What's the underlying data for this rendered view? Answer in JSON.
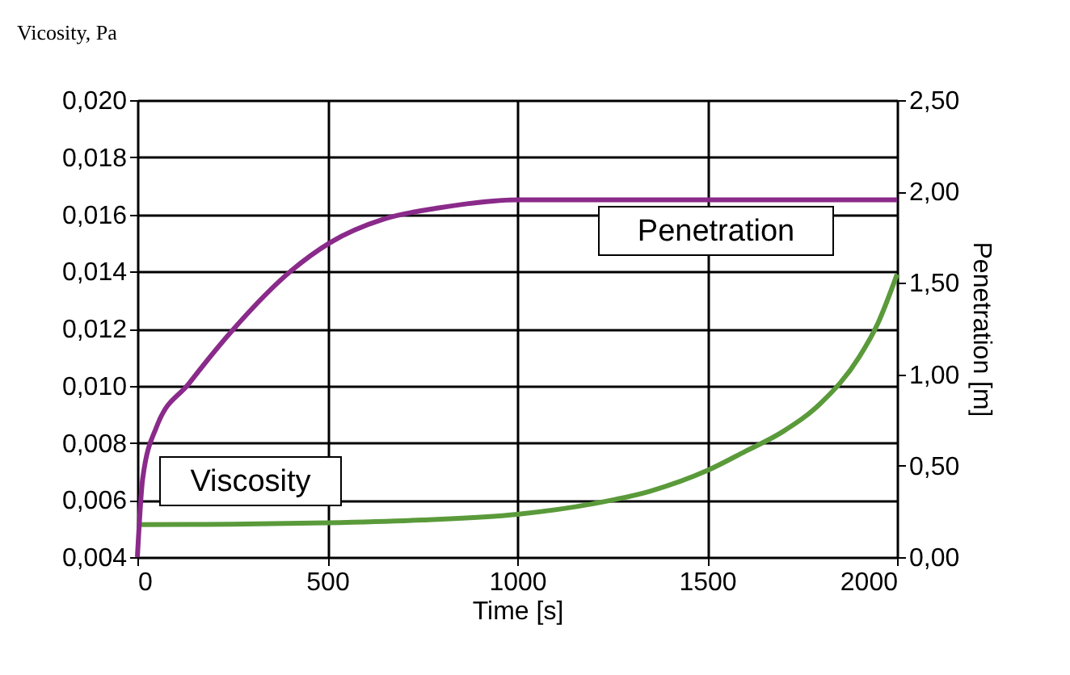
{
  "chart_data": {
    "type": "line",
    "xlabel": "Time [s]",
    "ylabel": "Vicosity, Pa",
    "y2label": "Penetration [m]",
    "xlim": [
      0,
      2000
    ],
    "xticks": [
      0,
      500,
      1000,
      1500,
      2000
    ],
    "ylim": [
      0.004,
      0.02
    ],
    "yticks": [
      {
        "value": 0.004,
        "label": "0,004"
      },
      {
        "value": 0.006,
        "label": "0,006"
      },
      {
        "value": 0.008,
        "label": "0,008"
      },
      {
        "value": 0.01,
        "label": "0,010"
      },
      {
        "value": 0.012,
        "label": "0,012"
      },
      {
        "value": 0.014,
        "label": "0,014"
      },
      {
        "value": 0.016,
        "label": "0,016"
      },
      {
        "value": 0.018,
        "label": "0,018"
      },
      {
        "value": 0.02,
        "label": "0,020"
      }
    ],
    "y2lim": [
      0,
      2.5
    ],
    "y2ticks": [
      {
        "value": 0,
        "label": "0,00"
      },
      {
        "value": 0.5,
        "label": "0,50"
      },
      {
        "value": 1,
        "label": "1,00"
      },
      {
        "value": 1.5,
        "label": "1,50"
      },
      {
        "value": 2,
        "label": "2,00"
      },
      {
        "value": 2.5,
        "label": "2,50"
      }
    ],
    "grid": true,
    "series": [
      {
        "name": "Viscosity",
        "color": "#5a9a3a",
        "x": [
          0,
          250,
          500,
          750,
          1000,
          1200,
          1350,
          1500,
          1600,
          1700,
          1800,
          1900,
          1950,
          2000
        ],
        "values": [
          0.00514,
          0.00515,
          0.0052,
          0.0053,
          0.0055,
          0.00587,
          0.00631,
          0.00703,
          0.0077,
          0.0084,
          0.0094,
          0.011,
          0.0122,
          0.0139
        ]
      },
      {
        "name": "Penetration",
        "color": "#8a2a8a",
        "axis": "y2",
        "x": [
          0,
          14,
          50,
          136,
          250,
          407,
          507,
          650,
          793,
          1000,
          1500,
          2000
        ],
        "values": [
          0,
          0.43,
          0.71,
          0.95,
          1.24,
          1.57,
          1.72,
          1.85,
          1.91,
          1.955,
          1.955,
          1.955
        ]
      }
    ]
  }
}
